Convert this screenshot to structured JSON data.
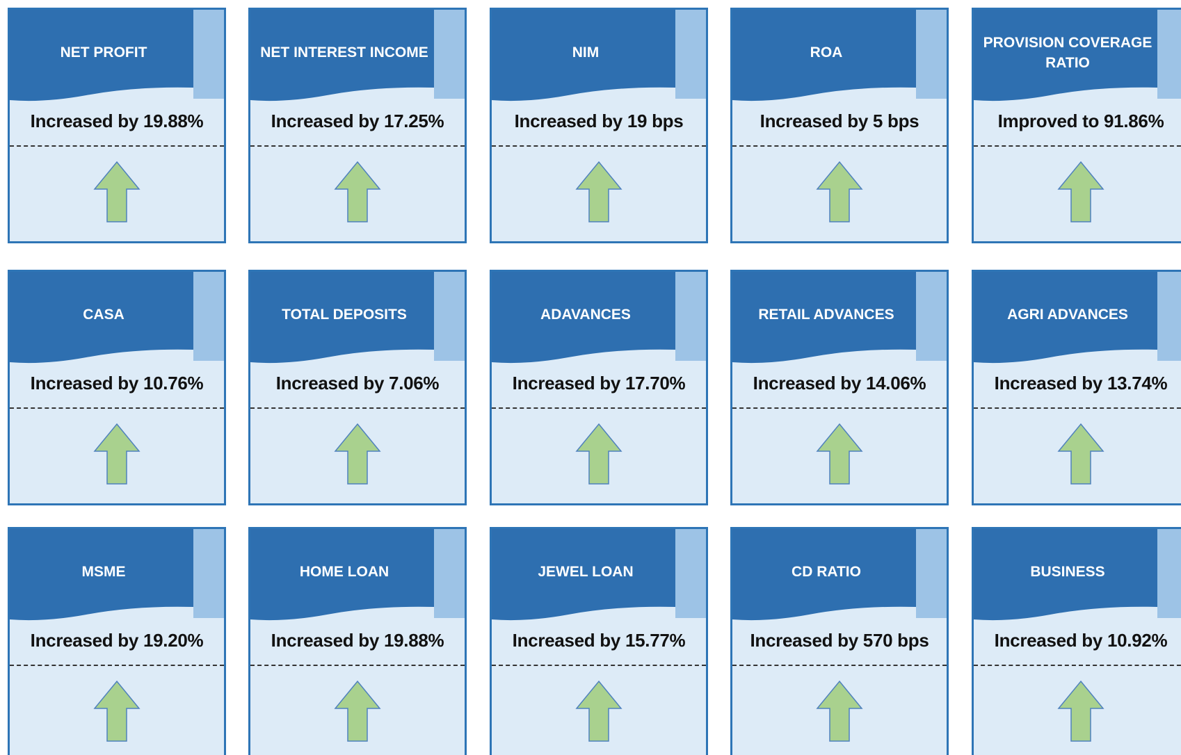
{
  "cards": [
    {
      "title": "NET PROFIT",
      "text": "Increased by 19.88%"
    },
    {
      "title": "NET INTEREST INCOME",
      "text": "Increased by 17.25%"
    },
    {
      "title": "NIM",
      "text": "Increased by 19 bps"
    },
    {
      "title": "ROA",
      "text": "Increased by 5 bps"
    },
    {
      "title": "PROVISION COVERAGE RATIO",
      "text": "Improved to 91.86%"
    },
    {
      "title": "CASA",
      "text": "Increased by 10.76%"
    },
    {
      "title": "TOTAL DEPOSITS",
      "text": "Increased by 7.06%"
    },
    {
      "title": "ADAVANCES",
      "text": "Increased by 17.70%"
    },
    {
      "title": "RETAIL ADVANCES",
      "text": "Increased by 14.06%"
    },
    {
      "title": "AGRI ADVANCES",
      "text": "Increased by 13.74%"
    },
    {
      "title": "MSME",
      "text": "Increased by 19.20%"
    },
    {
      "title": "HOME LOAN",
      "text": "Increased by 19.88%"
    },
    {
      "title": "JEWEL LOAN",
      "text": "Increased by 15.77%"
    },
    {
      "title": "CD RATIO",
      "text": "Increased by 570 bps"
    },
    {
      "title": "BUSINESS",
      "text": "Increased by 10.92%"
    }
  ]
}
